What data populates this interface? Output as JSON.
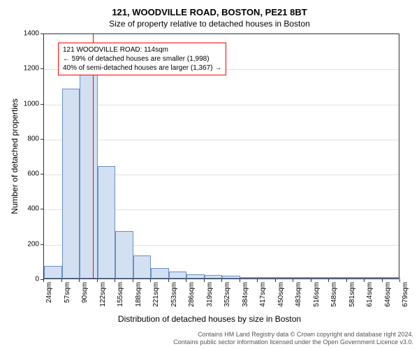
{
  "title_main": "121, WOODVILLE ROAD, BOSTON, PE21 8BT",
  "title_sub": "Size of property relative to detached houses in Boston",
  "ylabel": "Number of detached properties",
  "xlabel": "Distribution of detached houses by size in Boston",
  "chart": {
    "type": "histogram",
    "ylim": [
      0,
      1400
    ],
    "yticks": [
      0,
      200,
      400,
      600,
      800,
      1000,
      1200,
      1400
    ],
    "xticks": [
      "24sqm",
      "57sqm",
      "90sqm",
      "122sqm",
      "155sqm",
      "188sqm",
      "221sqm",
      "253sqm",
      "286sqm",
      "319sqm",
      "352sqm",
      "384sqm",
      "417sqm",
      "450sqm",
      "483sqm",
      "516sqm",
      "548sqm",
      "581sqm",
      "614sqm",
      "646sqm",
      "679sqm"
    ],
    "bars": [
      70,
      1080,
      1180,
      640,
      270,
      130,
      60,
      40,
      24,
      20,
      16,
      10,
      4,
      4,
      3,
      2,
      1,
      1,
      1,
      1
    ],
    "bar_fill": "#d2e0f2",
    "bar_stroke": "#6a8fc4",
    "grid_color": "#e0e0e0",
    "background_color": "#ffffff",
    "axis_color": "#333333"
  },
  "reference": {
    "x_sqm": 114,
    "line_color": "#ff0000",
    "line1": "121 WOODVILLE ROAD: 114sqm",
    "line2": "← 59% of detached houses are smaller (1,998)",
    "line3": "40% of semi-detached houses are larger (1,367) →",
    "box_border": "#ff0000"
  },
  "footer": {
    "line1": "Contains HM Land Registry data © Crown copyright and database right 2024.",
    "line2": "Contains public sector information licensed under the Open Government Licence v3.0."
  },
  "fonts": {
    "title_size_pt": 13,
    "subtitle_size_pt": 12,
    "label_size_pt": 12,
    "tick_size_pt": 10,
    "anno_size_pt": 10,
    "footer_size_pt": 9
  }
}
